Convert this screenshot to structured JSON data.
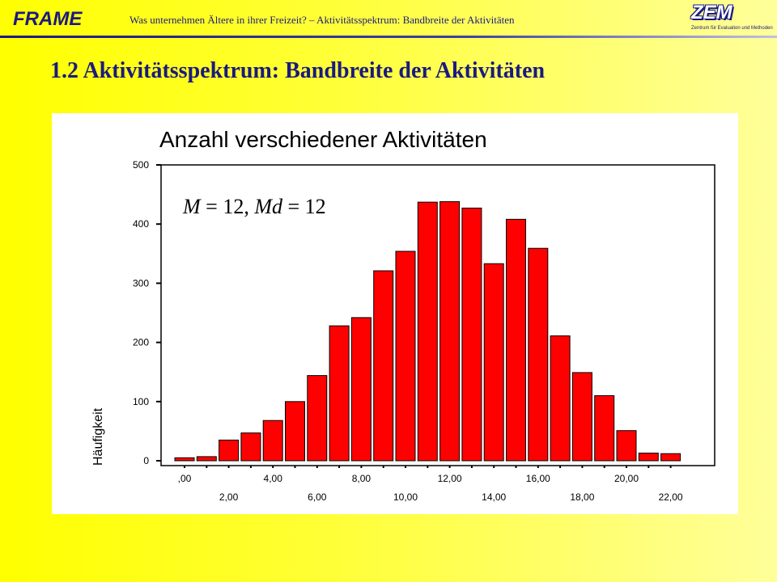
{
  "header": {
    "logo_text": "FRAME",
    "subtitle": "Was unternehmen Ältere in ihrer Freizeit? – Aktivitätsspektrum: Bandbreite der Aktivitäten",
    "zem_logo": "ZEM",
    "zem_sub": "Zentrum für Evaluation und Methoden"
  },
  "page_title": "1.2 Aktivitätsspektrum: Bandbreite der Aktivitäten",
  "annotation": {
    "m_label": "M",
    "m_value": " = 12, ",
    "md_label": "Md",
    "md_value": " = 12"
  },
  "colors": {
    "bar_fill": "#ff0000",
    "bar_stroke": "#000000",
    "title_color": "#1a1a80"
  },
  "chart_data": {
    "type": "bar",
    "title": "Anzahl verschiedener Aktivitäten",
    "xlabel": "",
    "ylabel": "Häufigkeit",
    "x": [
      0,
      1,
      2,
      3,
      4,
      5,
      6,
      7,
      8,
      9,
      10,
      11,
      12,
      13,
      14,
      15,
      16,
      17,
      18,
      19,
      20,
      21,
      22
    ],
    "values": [
      5,
      7,
      35,
      47,
      68,
      100,
      144,
      228,
      242,
      321,
      354,
      437,
      438,
      427,
      333,
      408,
      359,
      211,
      149,
      110,
      51,
      13,
      12
    ],
    "ylim": [
      0,
      500
    ],
    "yticks": [
      "0",
      "100",
      "200",
      "300",
      "400",
      "500"
    ],
    "xtick_labels_upper": [
      ",00",
      "4,00",
      "8,00",
      "12,00",
      "16,00",
      "20,00"
    ],
    "xtick_labels_lower": [
      "2,00",
      "6,00",
      "10,00",
      "14,00",
      "18,00",
      "22,00"
    ],
    "grid": false
  }
}
